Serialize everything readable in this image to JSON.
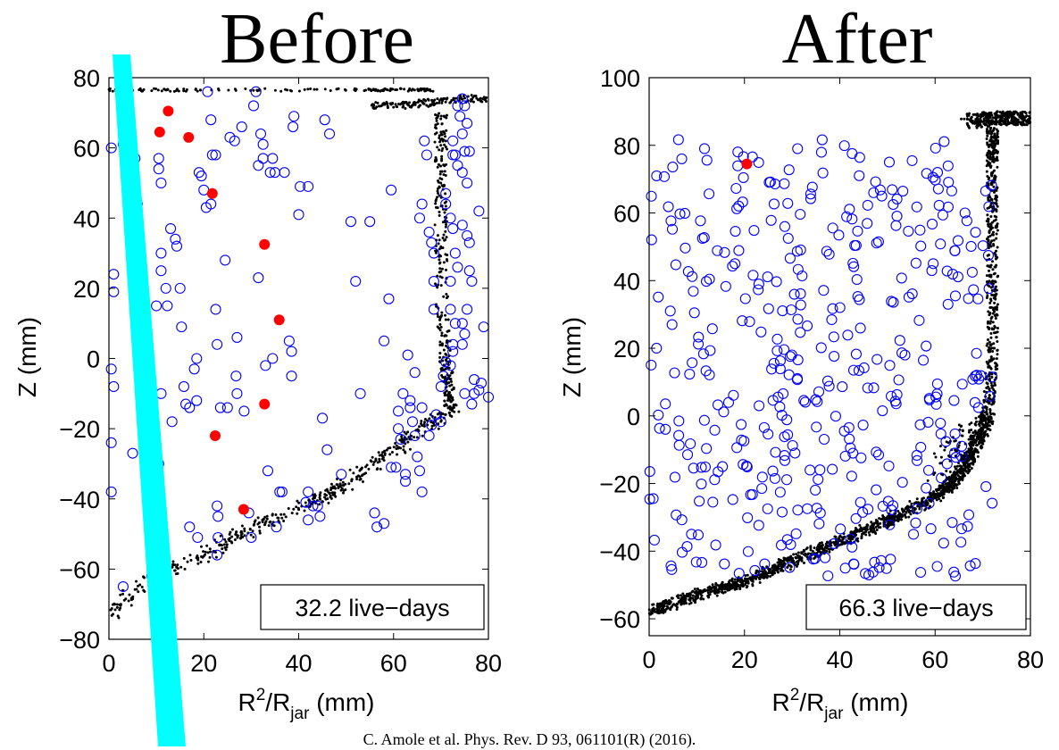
{
  "chart_data": [
    {
      "type": "scatter",
      "title": "Before",
      "xlabel_base": "R",
      "xlabel_sup": "2",
      "xlabel_mid": "/R",
      "xlabel_sub": "jar",
      "xlabel_unit": " (mm)",
      "ylabel": "Z (mm)",
      "xlim": [
        0,
        80
      ],
      "ylim": [
        -80,
        80
      ],
      "xticks": [
        0,
        20,
        40,
        60,
        80
      ],
      "yticks": [
        -80,
        -60,
        -40,
        -20,
        0,
        20,
        40,
        60,
        80
      ],
      "annotation": "32.2 live−days",
      "colors": {
        "circles": "#0000ff",
        "events": "#ff0000",
        "dots": "#000000",
        "band": "#00ffff"
      },
      "series": [
        {
          "marker": "red-filled-circle",
          "points": [
            [
              12.5,
              70.5
            ],
            [
              10.7,
              64.5
            ],
            [
              16.8,
              63
            ],
            [
              21.8,
              47
            ],
            [
              32.8,
              32.5
            ],
            [
              35.9,
              11
            ],
            [
              32.8,
              -13
            ],
            [
              22.4,
              -22
            ],
            [
              28.4,
              -43
            ]
          ]
        },
        {
          "marker": "blue-open-circle",
          "points": [
            [
              0.5,
              60
            ],
            [
              3,
              61
            ],
            [
              1,
              24
            ],
            [
              1,
              19
            ],
            [
              0.5,
              -3
            ],
            [
              1,
              -8
            ],
            [
              0.5,
              -24
            ],
            [
              0.5,
              -38
            ],
            [
              3,
              -65
            ],
            [
              5.5,
              57
            ],
            [
              6,
              44
            ],
            [
              6,
              28
            ],
            [
              6,
              24
            ],
            [
              5,
              -27
            ],
            [
              8,
              -32
            ],
            [
              9.5,
              -40
            ],
            [
              9,
              -52
            ],
            [
              9,
              -62
            ],
            [
              10.5,
              57
            ],
            [
              10.5,
              54
            ],
            [
              11,
              50
            ],
            [
              11,
              30
            ],
            [
              11,
              25
            ],
            [
              12,
              20
            ],
            [
              10,
              15
            ],
            [
              11,
              -10
            ],
            [
              10.5,
              -30
            ],
            [
              12.3,
              15
            ],
            [
              13,
              37
            ],
            [
              14,
              34
            ],
            [
              14.3,
              32
            ],
            [
              13.3,
              -18
            ],
            [
              15,
              20
            ],
            [
              15.3,
              9
            ],
            [
              15.8,
              -8
            ],
            [
              16.2,
              -13
            ],
            [
              17,
              -14
            ],
            [
              17,
              -48
            ],
            [
              18,
              -3
            ],
            [
              18.5,
              0
            ],
            [
              18.5,
              -12
            ],
            [
              18.7,
              -51
            ],
            [
              19,
              53
            ],
            [
              19.5,
              52
            ],
            [
              20,
              48
            ],
            [
              20.5,
              43
            ],
            [
              20.8,
              76
            ],
            [
              21.5,
              44
            ],
            [
              21.8,
              58
            ],
            [
              22.5,
              58
            ],
            [
              21.5,
              68
            ],
            [
              22.5,
              14
            ],
            [
              22.8,
              4
            ],
            [
              22.8,
              -42
            ],
            [
              23,
              -45
            ],
            [
              23,
              -51
            ],
            [
              22.8,
              -56
            ],
            [
              23.5,
              -14
            ],
            [
              24.5,
              28
            ],
            [
              25,
              -14
            ],
            [
              25.5,
              63
            ],
            [
              26.5,
              62
            ],
            [
              26.8,
              -5
            ],
            [
              27,
              -10
            ],
            [
              27,
              6
            ],
            [
              28,
              66
            ],
            [
              28.5,
              -15
            ],
            [
              29.5,
              -44
            ],
            [
              30,
              -51
            ],
            [
              31,
              76
            ],
            [
              30.5,
              72
            ],
            [
              31.5,
              55
            ],
            [
              31.5,
              23
            ],
            [
              32,
              64
            ],
            [
              32.5,
              61
            ],
            [
              32.5,
              57
            ],
            [
              33,
              -2
            ],
            [
              33.5,
              -32
            ],
            [
              34,
              53
            ],
            [
              34.5,
              57
            ],
            [
              35,
              53
            ],
            [
              34.5,
              0
            ],
            [
              35.3,
              -48
            ],
            [
              36,
              -38
            ],
            [
              36.5,
              -38
            ],
            [
              37,
              53
            ],
            [
              38,
              5
            ],
            [
              38.5,
              2
            ],
            [
              38.5,
              -5
            ],
            [
              39,
              69
            ],
            [
              38.8,
              66
            ],
            [
              40,
              41
            ],
            [
              40.3,
              49
            ],
            [
              42,
              49
            ],
            [
              42,
              -46
            ],
            [
              41.5,
              -41
            ],
            [
              42,
              -38
            ],
            [
              43,
              -42
            ],
            [
              44,
              -42
            ],
            [
              44.5,
              -45
            ],
            [
              45,
              -17
            ],
            [
              46,
              -26
            ],
            [
              46.5,
              64
            ],
            [
              45.5,
              68
            ],
            [
              49,
              -33
            ],
            [
              51,
              39
            ],
            [
              52,
              22
            ],
            [
              53,
              -10
            ],
            [
              55,
              39
            ],
            [
              56,
              -44
            ],
            [
              56.5,
              -48
            ],
            [
              58,
              -47
            ],
            [
              58,
              5
            ],
            [
              59,
              17
            ],
            [
              59.5,
              48
            ],
            [
              59.5,
              -31
            ],
            [
              60.5,
              -31
            ],
            [
              61,
              -20
            ],
            [
              61,
              -15
            ],
            [
              62,
              -10
            ],
            [
              61.5,
              -23
            ],
            [
              62.5,
              -33
            ],
            [
              62.5,
              -35
            ],
            [
              63,
              1
            ],
            [
              63.5,
              -12
            ],
            [
              63.5,
              -14
            ],
            [
              64,
              -18
            ],
            [
              64.5,
              -22
            ],
            [
              65,
              -28
            ],
            [
              65.5,
              -32
            ],
            [
              66,
              -38
            ],
            [
              67.5,
              -22
            ],
            [
              68,
              -19
            ],
            [
              66,
              -14
            ],
            [
              64.5,
              -4
            ],
            [
              65.5,
              40
            ],
            [
              66,
              44
            ],
            [
              67.5,
              36
            ],
            [
              68,
              33
            ],
            [
              68.5,
              30
            ],
            [
              68.5,
              22
            ],
            [
              68.5,
              14
            ],
            [
              66.5,
              62
            ],
            [
              67,
              58
            ],
            [
              70,
              -18
            ],
            [
              69,
              -16
            ],
            [
              70,
              -8
            ],
            [
              70.5,
              -5
            ],
            [
              71,
              -1
            ],
            [
              72,
              -2
            ],
            [
              72.5,
              2
            ],
            [
              72.5,
              4
            ],
            [
              73,
              10
            ],
            [
              72,
              14
            ],
            [
              72,
              22
            ],
            [
              73.5,
              26
            ],
            [
              73,
              30
            ],
            [
              72.5,
              37
            ],
            [
              72,
              40
            ],
            [
              71,
              44
            ],
            [
              71,
              47
            ],
            [
              72.5,
              58
            ],
            [
              72.5,
              62
            ],
            [
              73,
              58
            ],
            [
              73.5,
              55
            ],
            [
              74.5,
              53
            ],
            [
              75,
              59
            ],
            [
              74.5,
              64
            ],
            [
              74,
              69
            ],
            [
              73.5,
              72
            ],
            [
              74.5,
              74
            ],
            [
              75,
              72
            ],
            [
              75.5,
              67
            ],
            [
              76,
              59
            ],
            [
              75.5,
              50
            ],
            [
              74.5,
              38
            ],
            [
              75.5,
              35
            ],
            [
              76,
              33
            ],
            [
              76,
              25
            ],
            [
              76.5,
              22
            ],
            [
              75.5,
              14
            ],
            [
              74.5,
              10
            ],
            [
              75,
              7
            ],
            [
              74.5,
              4
            ],
            [
              75,
              -10
            ],
            [
              76.5,
              -13
            ],
            [
              77,
              -10
            ],
            [
              77,
              -6
            ],
            [
              78,
              -9
            ],
            [
              78.5,
              -7
            ],
            [
              79,
              9
            ],
            [
              78,
              42
            ],
            [
              80,
              -11
            ]
          ]
        },
        {
          "marker": "black-dot",
          "paths": [
            {
              "x": [
                0,
                5,
                15,
                30,
                45,
                55,
                60,
                65,
                68
              ],
              "y": [
                76.5,
                76.5,
                76.5,
                76.5,
                76.5,
                76.5,
                76.5,
                76.5,
                76.5
              ],
              "n": 160,
              "s": 0.4
            },
            {
              "x": [
                55,
                62,
                68,
                74,
                80
              ],
              "y": [
                72,
                72,
                73,
                74,
                74
              ],
              "n": 150,
              "s": 1.0
            },
            {
              "x": [
                70,
                70,
                70,
                70,
                71,
                72,
                72
              ],
              "y": [
                70,
                60,
                40,
                20,
                0,
                -10,
                -15
              ],
              "n": 300,
              "s": 1.3
            },
            {
              "x": [
                72,
                66,
                58,
                50,
                44,
                36,
                28,
                20,
                12,
                5,
                0
              ],
              "y": [
                -15,
                -20,
                -28,
                -36,
                -40,
                -45,
                -50,
                -56,
                -61,
                -66,
                -74
              ],
              "n": 440,
              "s": 1.8
            }
          ]
        }
      ]
    },
    {
      "type": "scatter",
      "title": "After",
      "xlabel_base": "R",
      "xlabel_sup": "2",
      "xlabel_mid": "/R",
      "xlabel_sub": "jar",
      "xlabel_unit": " (mm)",
      "ylabel": "Z (mm)",
      "xlim": [
        0,
        80
      ],
      "ylim": [
        -65,
        100
      ],
      "xticks": [
        0,
        20,
        40,
        60,
        80
      ],
      "yticks": [
        -60,
        -40,
        -20,
        0,
        20,
        40,
        60,
        80,
        100
      ],
      "annotation": "66.3 live−days",
      "colors": {
        "circles": "#0000ff",
        "events": "#ff0000",
        "dots": "#000000"
      },
      "series": [
        {
          "marker": "red-filled-circle",
          "points": [
            [
              20.5,
              74.5
            ]
          ]
        },
        {
          "marker": "blue-open-circle",
          "xrange": [
            0,
            72
          ],
          "yrange": [
            -48,
            82
          ],
          "count": 430
        },
        {
          "marker": "black-dot",
          "paths": [
            {
              "x": [
                0,
                10,
                20,
                30,
                40,
                50,
                60,
                65,
                68,
                71
              ],
              "y": [
                -58,
                -53,
                -49,
                -43,
                -37,
                -31,
                -24,
                -18,
                -10,
                0
              ],
              "n": 1500,
              "s": 1.5
            },
            {
              "x": [
                71,
                72,
                72,
                72,
                72,
                72
              ],
              "y": [
                0,
                15,
                35,
                55,
                75,
                85
              ],
              "n": 500,
              "s": 1.2
            },
            {
              "x": [
                67,
                72,
                76,
                80
              ],
              "y": [
                87,
                88,
                88,
                88
              ],
              "n": 350,
              "s": 2.0
            },
            {
              "x": [
                60,
                63,
                66,
                70
              ],
              "y": [
                -20,
                -10,
                -5,
                -2
              ],
              "n": 60,
              "s": 2.5
            }
          ]
        }
      ]
    }
  ],
  "credit": "C. Amole et al. Phys. Rev. D 93, 061101(R) (2016)."
}
